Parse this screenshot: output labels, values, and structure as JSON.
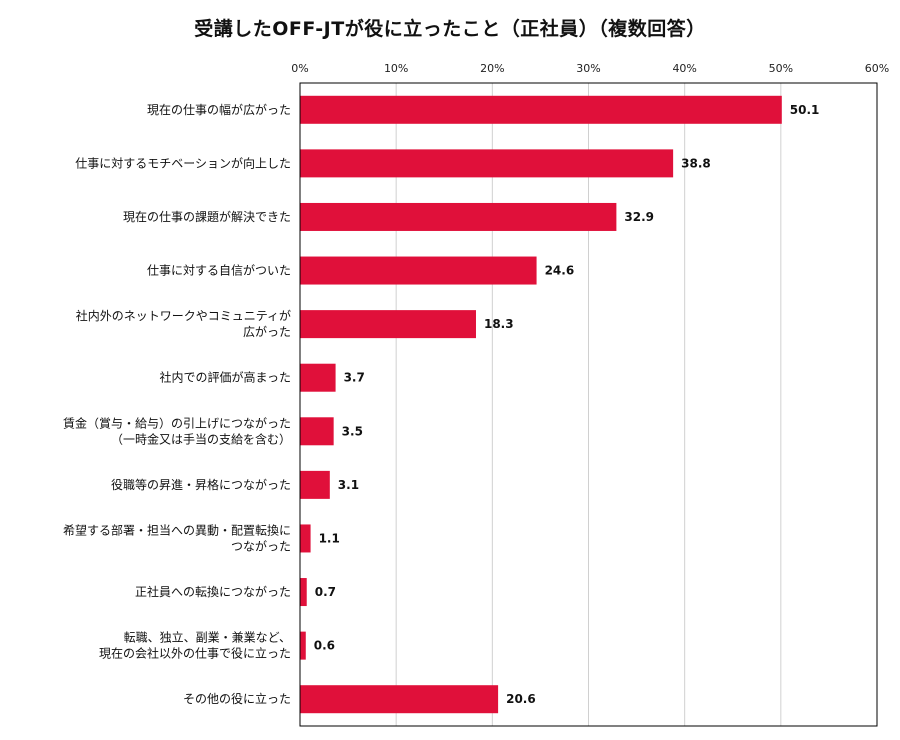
{
  "chart_data": {
    "type": "bar",
    "orientation": "horizontal",
    "title": "受講したOFF-JTが役に立ったこと（正社員）（複数回答）",
    "xlabel": "",
    "ylabel": "",
    "xlim": [
      0,
      60
    ],
    "tick_labels": [
      "0%",
      "10%",
      "20%",
      "30%",
      "40%",
      "50%",
      "60%"
    ],
    "grid": true,
    "bar_color": "#e0103a",
    "categories": [
      [
        "現在の仕事の幅が広がった"
      ],
      [
        "仕事に対するモチベーションが向上した"
      ],
      [
        "現在の仕事の課題が解決できた"
      ],
      [
        "仕事に対する自信がついた"
      ],
      [
        "社内外のネットワークやコミュニティが",
        "広がった"
      ],
      [
        "社内での評価が高まった"
      ],
      [
        "賃金（賞与・給与）の引上げにつながった",
        "（一時金又は手当の支給を含む）"
      ],
      [
        "役職等の昇進・昇格につながった"
      ],
      [
        "希望する部署・担当への異動・配置転換に",
        "つながった"
      ],
      [
        "正社員への転換につながった"
      ],
      [
        "転職、独立、副業・兼業など、",
        "現在の会社以外の仕事で役に立った"
      ],
      [
        "その他の役に立った"
      ]
    ],
    "values": [
      50.1,
      38.8,
      32.9,
      24.6,
      18.3,
      3.7,
      3.5,
      3.1,
      1.1,
      0.7,
      0.6,
      20.6
    ],
    "value_labels": [
      "50.1",
      "38.8",
      "32.9",
      "24.6",
      "18.3",
      "3.7",
      "3.5",
      "3.1",
      "1.1",
      "0.7",
      "0.6",
      "20.6"
    ]
  }
}
